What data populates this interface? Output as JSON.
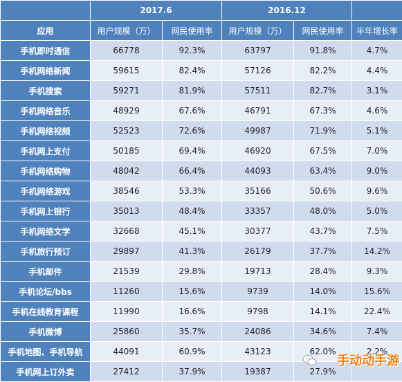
{
  "periods": [
    "2017.6",
    "2016.12"
  ],
  "columns": {
    "app": "应用",
    "users_2017": "用户规模（万）",
    "rate_2017": "网民使用率",
    "users_2016": "用户规模（万）",
    "rate_2016": "网民使用率",
    "growth": "半年增长率"
  },
  "rows": [
    {
      "app": "手机即时通信",
      "u1": "66778",
      "r1": "92.3%",
      "u2": "63797",
      "r2": "91.8%",
      "g": "4.7%"
    },
    {
      "app": "手机网络新闻",
      "u1": "59615",
      "r1": "82.4%",
      "u2": "57126",
      "r2": "82.2%",
      "g": "4.4%"
    },
    {
      "app": "手机搜索",
      "u1": "59271",
      "r1": "81.9%",
      "u2": "57511",
      "r2": "82.7%",
      "g": "3.1%"
    },
    {
      "app": "手机网络音乐",
      "u1": "48929",
      "r1": "67.6%",
      "u2": "46791",
      "r2": "67.3%",
      "g": "4.6%"
    },
    {
      "app": "手机网络视频",
      "u1": "52523",
      "r1": "72.6%",
      "u2": "49987",
      "r2": "71.9%",
      "g": "5.1%"
    },
    {
      "app": "手机网上支付",
      "u1": "50185",
      "r1": "69.4%",
      "u2": "46920",
      "r2": "67.5%",
      "g": "7.0%"
    },
    {
      "app": "手机网络购物",
      "u1": "48042",
      "r1": "66.4%",
      "u2": "44093",
      "r2": "63.4%",
      "g": "9.0%"
    },
    {
      "app": "手机网络游戏",
      "u1": "38546",
      "r1": "53.3%",
      "u2": "35166",
      "r2": "50.6%",
      "g": "9.6%"
    },
    {
      "app": "手机网上银行",
      "u1": "35013",
      "r1": "48.4%",
      "u2": "33357",
      "r2": "48.0%",
      "g": "5.0%"
    },
    {
      "app": "手机网络文学",
      "u1": "32668",
      "r1": "45.1%",
      "u2": "30377",
      "r2": "43.7%",
      "g": "7.5%"
    },
    {
      "app": "手机旅行预订",
      "u1": "29897",
      "r1": "41.3%",
      "u2": "26179",
      "r2": "37.7%",
      "g": "14.2%"
    },
    {
      "app": "手机邮件",
      "u1": "21539",
      "r1": "29.8%",
      "u2": "19713",
      "r2": "28.4%",
      "g": "9.3%"
    },
    {
      "app": "手机论坛/bbs",
      "u1": "11260",
      "r1": "15.6%",
      "u2": "9739",
      "r2": "14.0%",
      "g": "15.6%"
    },
    {
      "app": "手机在线教育课程",
      "u1": "11990",
      "r1": "16.6%",
      "u2": "9798",
      "r2": "14.1%",
      "g": "22.4%"
    },
    {
      "app": "手机微博",
      "u1": "25860",
      "r1": "35.7%",
      "u2": "24086",
      "r2": "34.6%",
      "g": "7.4%"
    },
    {
      "app": "手机地图、手机导航",
      "u1": "44091",
      "r1": "60.9%",
      "u2": "43123",
      "r2": "62.0%",
      "g": "2.2%"
    },
    {
      "app": "手机网上订外卖",
      "u1": "27412",
      "r1": "37.9%",
      "u2": "19387",
      "r2": "27.9%",
      "g": ""
    }
  ],
  "watermark": {
    "text": "手动动手游",
    "color": "#e8821c"
  },
  "colors": {
    "header": "#4f81bd",
    "row_odd": "#d0dcee",
    "row_even": "#e8eef7"
  }
}
